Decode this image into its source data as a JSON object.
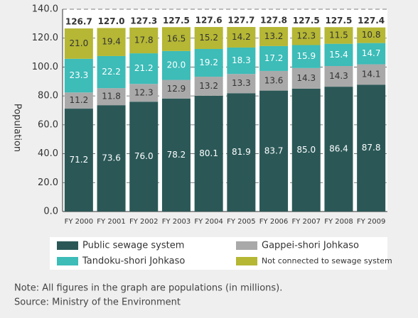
{
  "chart_data": {
    "type": "stacked_bar",
    "ylabel": "Population",
    "categories": [
      "FY 2000",
      "FY 2001",
      "FY 2002",
      "FY 2003",
      "FY 2004",
      "FY 2005",
      "FY 2006",
      "FY 2007",
      "FY 2008",
      "FY 2009"
    ],
    "series": [
      {
        "name": "Public sewage system",
        "color": "#2b5857",
        "label_color": "#ffffff",
        "values": [
          71.2,
          73.6,
          76.0,
          78.2,
          80.1,
          81.9,
          83.7,
          85.0,
          86.4,
          87.8
        ],
        "value_labels": [
          "71.2",
          "73.6",
          "76.0",
          "78.2",
          "80.1",
          "81.9",
          "83.7",
          "85.0",
          "86.4",
          "87.8"
        ]
      },
      {
        "name": "Gappei-shori Johkaso",
        "color": "#a9a9a9",
        "label_color": "#333333",
        "values": [
          11.2,
          11.8,
          12.3,
          12.9,
          13.2,
          13.3,
          13.6,
          14.3,
          14.3,
          14.1
        ],
        "value_labels": [
          "11.2",
          "11.8",
          "12.3",
          "12.9",
          "13.2",
          "13.3",
          "13.6",
          "14.3",
          "14.3",
          "14.1"
        ]
      },
      {
        "name": "Tandoku-shori Johkaso",
        "color": "#3dbcb8",
        "label_color": "#ffffff",
        "values": [
          23.3,
          22.2,
          21.2,
          20.0,
          19.2,
          18.3,
          17.2,
          15.9,
          15.4,
          14.7
        ],
        "value_labels": [
          "23.3",
          "22.2",
          "21.2",
          "20.0",
          "19.2",
          "18.3",
          "17.2",
          "15.9",
          "15.4",
          "14.7"
        ]
      },
      {
        "name": "Not connected to sewage system",
        "color": "#b5b735",
        "label_color": "#333333",
        "values": [
          21.0,
          19.4,
          17.8,
          16.5,
          15.2,
          14.2,
          13.2,
          12.3,
          11.5,
          10.8
        ],
        "value_labels": [
          "21.0",
          "19.4",
          "17.8",
          "16.5",
          "15.2",
          "14.2",
          "13.2",
          "12.3",
          "11.5",
          "10.8"
        ]
      }
    ],
    "totals": [
      126.7,
      127.0,
      127.3,
      127.5,
      127.6,
      127.7,
      127.8,
      127.5,
      127.5,
      127.4
    ],
    "total_labels": [
      "126.7",
      "127.0",
      "127.3",
      "127.5",
      "127.6",
      "127.7",
      "127.8",
      "127.5",
      "127.5",
      "127.4"
    ],
    "ylim": [
      0,
      140
    ],
    "yticks": [
      {
        "value": 0,
        "label": "0.0"
      },
      {
        "value": 20,
        "label": "20.0"
      },
      {
        "value": 40,
        "label": "40.0"
      },
      {
        "value": 60,
        "label": "60.0"
      },
      {
        "value": 80,
        "label": "80.0"
      },
      {
        "value": 100,
        "label": "100.0"
      },
      {
        "value": 120,
        "label": "120.0"
      },
      {
        "value": 140,
        "label": "140.0"
      }
    ],
    "grid": true,
    "notes": [
      "Note: All figures in the graph are populations (in millions).",
      "Source: Ministry of the Environment"
    ]
  }
}
